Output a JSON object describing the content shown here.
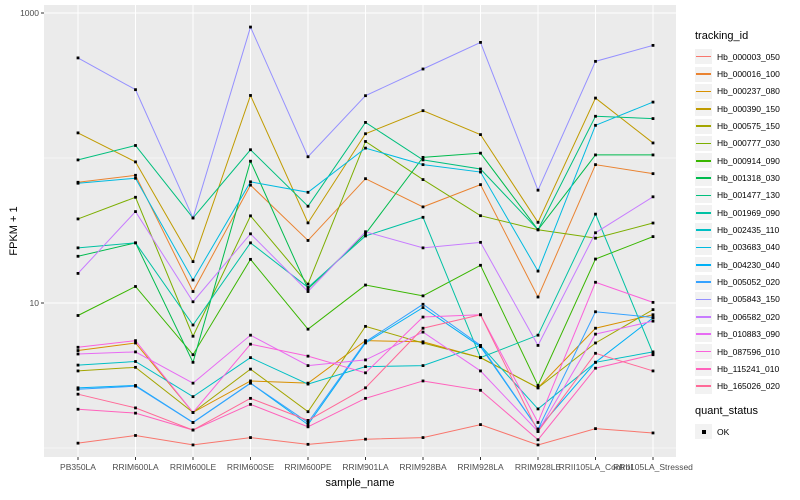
{
  "chart_data": {
    "type": "line",
    "title": "",
    "xlabel": "sample_name",
    "ylabel": "FPKM + 1",
    "yscale": "log10",
    "ylim": [
      0.87,
      1135
    ],
    "grid": true,
    "legend_position": "right",
    "panel_bg": "#EBEBEB",
    "grid_color": "#FFFFFF",
    "axis_text_color": "#4D4D4D",
    "tick_color": "#333333",
    "point_marker": "square",
    "point_color": "#000000",
    "yticks": [
      {
        "value": 1000,
        "label": "1000"
      },
      {
        "value": 10,
        "label": "10"
      }
    ],
    "minor_grid_values": [
      100,
      1
    ],
    "categories": [
      "PB350LA",
      "RRIM600LA",
      "RRIM600LE",
      "RRIM600SE",
      "RRIM600PE",
      "RRIM901LA",
      "RRIM928BA",
      "RRIM928LA",
      "RRIM928LE",
      "RRII105LA_Control",
      "RRII105LA_Stressed"
    ],
    "legend_title": "tracking_id",
    "series": [
      {
        "name": "Hb_000003_050",
        "color": "#F8766D",
        "values": [
          1.08,
          1.22,
          1.05,
          1.18,
          1.06,
          1.15,
          1.18,
          1.45,
          1.05,
          1.36,
          1.27
        ]
      },
      {
        "name": "Hb_000016_100",
        "color": "#EA8331",
        "values": [
          68,
          76,
          12,
          65,
          27,
          72,
          46,
          65.5,
          11,
          90,
          78
        ]
      },
      {
        "name": "Hb_000237_080",
        "color": "#D89000",
        "values": [
          4.7,
          5.3,
          1.76,
          2.9,
          2.8,
          5.5,
          5.4,
          4.2,
          2.6,
          6.7,
          8.3
        ]
      },
      {
        "name": "Hb_000390_150",
        "color": "#C09B00",
        "values": [
          149,
          94,
          19.3,
          270,
          35.7,
          147,
          212,
          145,
          36,
          259,
          127
        ]
      },
      {
        "name": "Hb_000575_150",
        "color": "#A3A500",
        "values": [
          3.4,
          3.6,
          1.76,
          3.5,
          1.78,
          6.9,
          5.3,
          4.2,
          2.6,
          5.3,
          9.0
        ]
      },
      {
        "name": "Hb_000777_030",
        "color": "#7CAE00",
        "values": [
          38,
          53.6,
          5.9,
          39.9,
          13.5,
          130,
          71,
          40,
          32,
          28,
          35.6
        ]
      },
      {
        "name": "Hb_000914_090",
        "color": "#39B600",
        "values": [
          8.2,
          13,
          4.4,
          20,
          6.6,
          13.3,
          11.2,
          18.2,
          2.7,
          20.1,
          28.7
        ]
      },
      {
        "name": "Hb_001318_030",
        "color": "#00BB4E",
        "values": [
          21,
          26,
          3.9,
          95,
          12.5,
          30,
          101,
          108,
          32,
          105,
          105
        ]
      },
      {
        "name": "Hb_001477_130",
        "color": "#00BF7D",
        "values": [
          97,
          122,
          38.6,
          114,
          46.5,
          176,
          97,
          84,
          32,
          194,
          187
        ]
      },
      {
        "name": "Hb_001969_090",
        "color": "#00C1A3",
        "values": [
          24,
          26,
          7.05,
          26,
          12.8,
          29,
          39,
          4.2,
          6.0,
          41,
          4.5
        ]
      },
      {
        "name": "Hb_002435_110",
        "color": "#00BFC4",
        "values": [
          3.73,
          3.95,
          2.26,
          4.2,
          2.76,
          3.64,
          3.7,
          5.1,
          1.86,
          3.9,
          4.6
        ]
      },
      {
        "name": "Hb_003683_040",
        "color": "#00BAE0",
        "values": [
          67,
          72.5,
          14.4,
          68.5,
          58,
          117,
          90,
          80,
          16.6,
          168,
          243
        ]
      },
      {
        "name": "Hb_004230_040",
        "color": "#00B0F6",
        "values": [
          2.6,
          2.7,
          1.5,
          2.8,
          1.45,
          5.3,
          9.3,
          5.0,
          1.35,
          3.9,
          7.9
        ]
      },
      {
        "name": "Hb_005052_020",
        "color": "#35A2FF",
        "values": [
          2.54,
          2.67,
          1.5,
          2.8,
          1.5,
          5.4,
          9.8,
          5.1,
          1.35,
          8.7,
          7.95
        ]
      },
      {
        "name": "Hb_005843_150",
        "color": "#9590FF",
        "values": [
          490,
          296,
          38.6,
          800,
          102,
          269,
          411,
          627,
          60,
          464,
          598
        ]
      },
      {
        "name": "Hb_006582_020",
        "color": "#C77CFF",
        "values": [
          16,
          42.7,
          10.2,
          30,
          12,
          31,
          24,
          26.2,
          5.1,
          30.5,
          54
        ]
      },
      {
        "name": "Hb_010883_090",
        "color": "#E76BF3",
        "values": [
          4.45,
          4.6,
          2.8,
          6,
          3.7,
          4.05,
          6.3,
          3.4,
          1.3,
          6.1,
          7.5
        ]
      },
      {
        "name": "Hb_087596_010",
        "color": "#FA62DB",
        "values": [
          4.95,
          5.5,
          1.76,
          5.2,
          4.3,
          3.3,
          8,
          8.3,
          1.5,
          13.9,
          10.1
        ]
      },
      {
        "name": "Hb_115241_010",
        "color": "#FF62BC",
        "values": [
          1.85,
          1.74,
          1.33,
          2.0,
          1.4,
          2.2,
          2.9,
          2.5,
          1.14,
          3.55,
          4.4
        ]
      },
      {
        "name": "Hb_165026_020",
        "color": "#FF6A98",
        "values": [
          2.35,
          1.89,
          1.33,
          2.2,
          1.55,
          2.6,
          6.7,
          8.3,
          1.3,
          4.5,
          3.4
        ]
      }
    ],
    "legend2": {
      "title": "quant_status",
      "items": [
        {
          "label": "OK",
          "color": "#000000",
          "marker": "square"
        }
      ]
    }
  }
}
